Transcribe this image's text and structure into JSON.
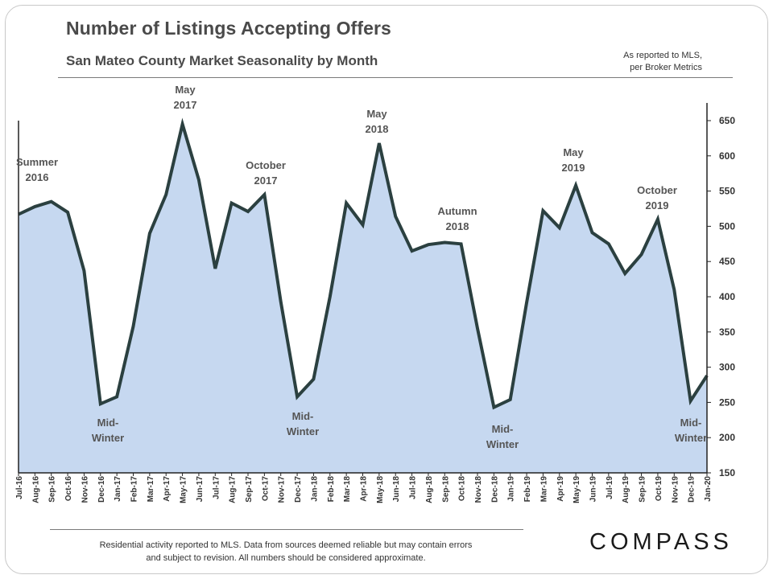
{
  "header": {
    "title": "Number of Listings Accepting Offers",
    "subtitle": "San Mateo County Market Seasonality by Month",
    "source_line1": "As reported to MLS,",
    "source_line2": "per Broker Metrics"
  },
  "footer": {
    "note_line1": "Residential activity reported to MLS. Data from sources deemed reliable but may contain errors",
    "note_line2": "and subject to revision. All numbers should be considered approximate.",
    "logo": "COMPASS"
  },
  "colors": {
    "fill": "#c6d8f0",
    "line": "#2b4040",
    "text": "#4a4a4a"
  },
  "chart_data": {
    "type": "area",
    "title": "Number of Listings Accepting Offers",
    "ylim": [
      150,
      650
    ],
    "yticks": [
      150,
      200,
      250,
      300,
      350,
      400,
      450,
      500,
      550,
      600,
      650
    ],
    "y_axis_side": "right",
    "grid": false,
    "categories": [
      "Jul-16",
      "Aug-16",
      "Sep-16",
      "Oct-16",
      "Nov-16",
      "Dec-16",
      "Jan-17",
      "Feb-17",
      "Mar-17",
      "Apr-17",
      "May-17",
      "Jun-17",
      "Jul-17",
      "Aug-17",
      "Sep-17",
      "Oct-17",
      "Nov-17",
      "Dec-17",
      "Jan-18",
      "Feb-18",
      "Mar-18",
      "Apr-18",
      "May-18",
      "Jun-18",
      "Jul-18",
      "Aug-18",
      "Sep-18",
      "Oct-18",
      "Nov-18",
      "Dec-18",
      "Jan-19",
      "Feb-19",
      "Mar-19",
      "Apr-19",
      "May-19",
      "Jun-19",
      "Jul-19",
      "Aug-19",
      "Sep-19",
      "Oct-19",
      "Nov-19",
      "Dec-19",
      "Jan-20"
    ],
    "values": [
      517,
      528,
      535,
      520,
      437,
      248,
      258,
      358,
      490,
      545,
      645,
      566,
      440,
      533,
      521,
      545,
      393,
      258,
      283,
      400,
      533,
      502,
      618,
      514,
      465,
      474,
      477,
      475,
      355,
      243,
      254,
      392,
      522,
      498,
      558,
      491,
      475,
      433,
      460,
      510,
      410,
      252,
      288
    ],
    "annotations": [
      {
        "index": 0,
        "lines": [
          "Summer",
          "2016"
        ]
      },
      {
        "index": 10,
        "lines": [
          "May",
          "2017"
        ]
      },
      {
        "index": 15,
        "lines": [
          "October",
          "2017"
        ]
      },
      {
        "index": 22,
        "lines": [
          "May",
          "2018"
        ]
      },
      {
        "index": 27,
        "lines": [
          "Autumn",
          "2018"
        ]
      },
      {
        "index": 34,
        "lines": [
          "May",
          "2019"
        ]
      },
      {
        "index": 39,
        "lines": [
          "October",
          "2019"
        ]
      },
      {
        "index": 5,
        "lines": [
          "Mid-",
          "Winter"
        ]
      },
      {
        "index": 17,
        "lines": [
          "Mid-",
          "Winter"
        ]
      },
      {
        "index": 29,
        "lines": [
          "Mid-",
          "Winter"
        ]
      },
      {
        "index": 41,
        "lines": [
          "Mid-",
          "Winter"
        ]
      }
    ]
  }
}
